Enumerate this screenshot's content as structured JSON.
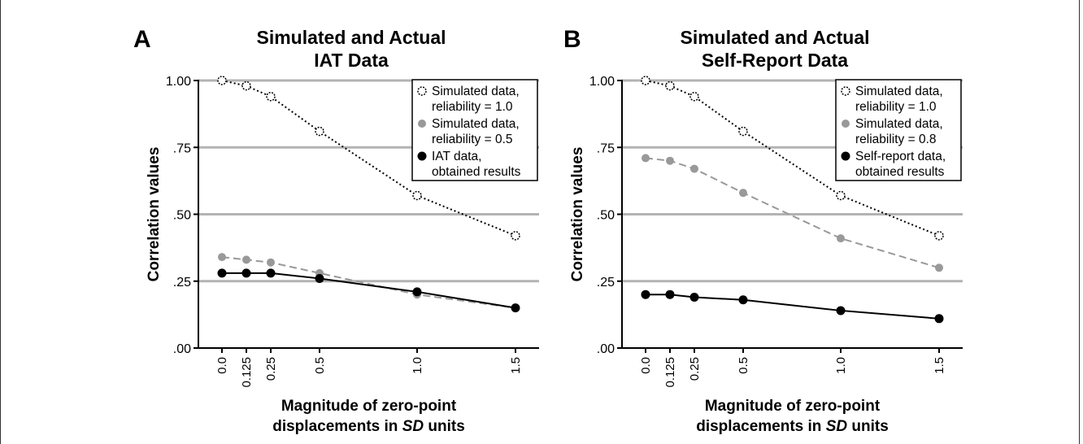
{
  "chart_data": [
    {
      "type": "line",
      "panel": "A",
      "title_line1": "Simulated and Actual",
      "title_line2": "IAT Data",
      "ylabel": "Correlation values",
      "xlabel_line1": "Magnitude of zero-point",
      "xlabel_line2_prefix": "displacements in ",
      "xlabel_line2_italic": "SD",
      "xlabel_line2_suffix": " units",
      "x": [
        0.0,
        0.125,
        0.25,
        0.5,
        1.0,
        1.5
      ],
      "x_tick_labels": [
        "0.0",
        "0.125",
        "0.25",
        "0.5",
        "1.0",
        "1.5"
      ],
      "y_ticks": [
        0.0,
        0.25,
        0.5,
        0.75,
        1.0
      ],
      "y_tick_labels": [
        ".00",
        ".25",
        ".50",
        ".75",
        "1.00"
      ],
      "ylim": [
        0,
        1
      ],
      "grid": "horizontal",
      "legend_position": "top-right",
      "series": [
        {
          "label1": "Simulated data,",
          "label2": "reliability = 1.0",
          "style": "dotted",
          "marker": "open-circle",
          "color": "#000000",
          "values": [
            1.0,
            0.98,
            0.94,
            0.81,
            0.57,
            0.42
          ]
        },
        {
          "label1": "Simulated data,",
          "label2": "reliability = 0.5",
          "style": "dashed",
          "marker": "gray-circle",
          "color": "#999999",
          "values": [
            0.34,
            0.33,
            0.32,
            0.28,
            0.2,
            0.15
          ]
        },
        {
          "label1": "IAT data,",
          "label2": "obtained results",
          "style": "solid",
          "marker": "black-circle",
          "color": "#000000",
          "values": [
            0.28,
            0.28,
            0.28,
            0.26,
            0.21,
            0.15
          ]
        }
      ]
    },
    {
      "type": "line",
      "panel": "B",
      "title_line1": "Simulated and Actual",
      "title_line2": "Self-Report Data",
      "ylabel": "Correlation values",
      "xlabel_line1": "Magnitude of zero-point",
      "xlabel_line2_prefix": "displacements in ",
      "xlabel_line2_italic": "SD",
      "xlabel_line2_suffix": " units",
      "x": [
        0.0,
        0.125,
        0.25,
        0.5,
        1.0,
        1.5
      ],
      "x_tick_labels": [
        "0.0",
        "0.125",
        "0.25",
        "0.5",
        "1.0",
        "1.5"
      ],
      "y_ticks": [
        0.0,
        0.25,
        0.5,
        0.75,
        1.0
      ],
      "y_tick_labels": [
        ".00",
        ".25",
        ".50",
        ".75",
        "1.00"
      ],
      "ylim": [
        0,
        1
      ],
      "grid": "horizontal",
      "legend_position": "top-right",
      "series": [
        {
          "label1": "Simulated data,",
          "label2": "reliability = 1.0",
          "style": "dotted",
          "marker": "open-circle",
          "color": "#000000",
          "values": [
            1.0,
            0.98,
            0.94,
            0.81,
            0.57,
            0.42
          ]
        },
        {
          "label1": "Simulated data,",
          "label2": "reliability = 0.8",
          "style": "dashed",
          "marker": "gray-circle",
          "color": "#999999",
          "values": [
            0.71,
            0.7,
            0.67,
            0.58,
            0.41,
            0.3
          ]
        },
        {
          "label1": "Self-report data,",
          "label2": "obtained results",
          "style": "solid",
          "marker": "black-circle",
          "color": "#000000",
          "values": [
            0.2,
            0.2,
            0.19,
            0.18,
            0.14,
            0.11
          ]
        }
      ]
    }
  ]
}
